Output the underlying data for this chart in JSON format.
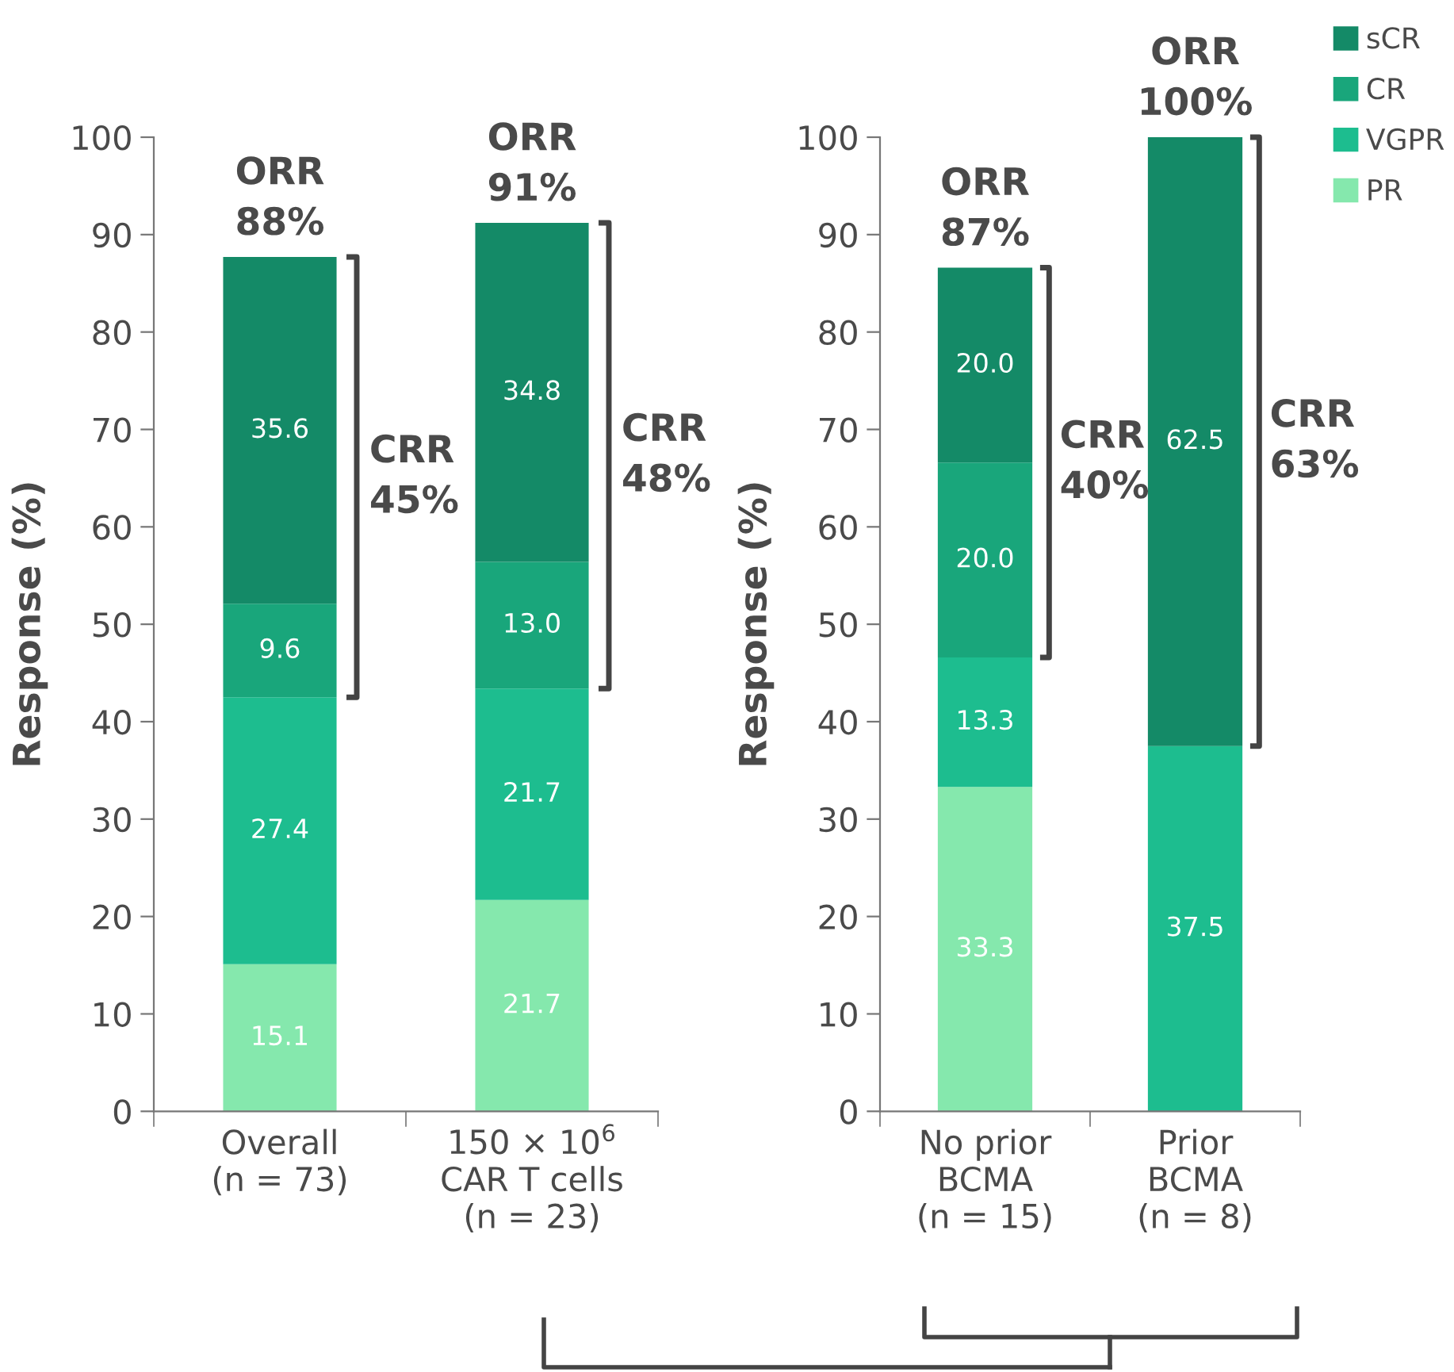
{
  "chart_data": [
    {
      "type": "bar",
      "stacked": true,
      "ylabel": "Response (%)",
      "categories": [
        "Overall\n(n = 73)",
        "150 × 10$^{6}$\nCAR T cells\n(n = 23)"
      ],
      "ylim": [
        0,
        100
      ],
      "yticks": [
        0,
        10,
        20,
        30,
        40,
        50,
        60,
        70,
        80,
        90,
        100
      ],
      "series": [
        {
          "color": "#85e8ad",
          "values": [
            15.1,
            21.7
          ],
          "value_labels": [
            "15.1",
            "21.7"
          ]
        },
        {
          "color": "#1dbd8f",
          "values": [
            27.4,
            21.7
          ],
          "value_labels": [
            "27.4",
            "21.7"
          ]
        },
        {
          "color": "#19a67b",
          "values": [
            9.6,
            13.0
          ],
          "value_labels": [
            "9.6",
            "13.0"
          ]
        },
        {
          "color": "#148a67",
          "values": [
            35.6,
            34.8
          ],
          "value_labels": [
            "35.6",
            "34.8"
          ]
        }
      ],
      "annotations": [
        {
          "text": "ORR\n88%",
          "x": "Overall\n(n = 73)",
          "y": 87.7
        },
        "CRR\n45%",
        {
          "text": "ORR\n91%",
          "x": "150 × 10$^{6}$\nCAR T cells\n(n = 23)",
          "y": 91.2
        },
        "CRR\n48%"
      ]
    },
    {
      "type": "bar",
      "stacked": true,
      "ylabel": "Response (%)",
      "categories": [
        "No prior\nBCMA\n(n = 15)",
        "Prior\nBCMA\n(n = 8)"
      ],
      "ylim": [
        0,
        100
      ],
      "yticks": [
        0,
        10,
        20,
        30,
        40,
        50,
        60,
        70,
        80,
        90,
        100
      ],
      "legend": "top right",
      "series": [
        {
          "name": "PR",
          "color": "#85e8ad",
          "values": [
            33.3,
            null
          ],
          "value_labels": [
            "33.3",
            null
          ]
        },
        {
          "name": "VGPR",
          "color": "#1dbd8f",
          "values": [
            13.3,
            37.5
          ],
          "value_labels": [
            "13.3",
            "37.5"
          ]
        },
        {
          "name": "CR",
          "color": "#19a67b",
          "values": [
            20.0,
            null
          ],
          "value_labels": [
            "20.0",
            null
          ]
        },
        {
          "name": "sCR",
          "color": "#148a67",
          "values": [
            20.0,
            62.5
          ],
          "value_labels": [
            "20.0",
            "62.5"
          ]
        }
      ],
      "annotations": [
        {
          "text": "ORR\n87%",
          "x": "No prior\nBCMA\n(n = 15)",
          "y": 86.6
        },
        "CRR\n40%",
        {
          "text": "ORR\n100%",
          "x": "Prior\nBCMA\n(n = 8)",
          "y": 100
        },
        "CRR\n63%"
      ]
    }
  ]
}
